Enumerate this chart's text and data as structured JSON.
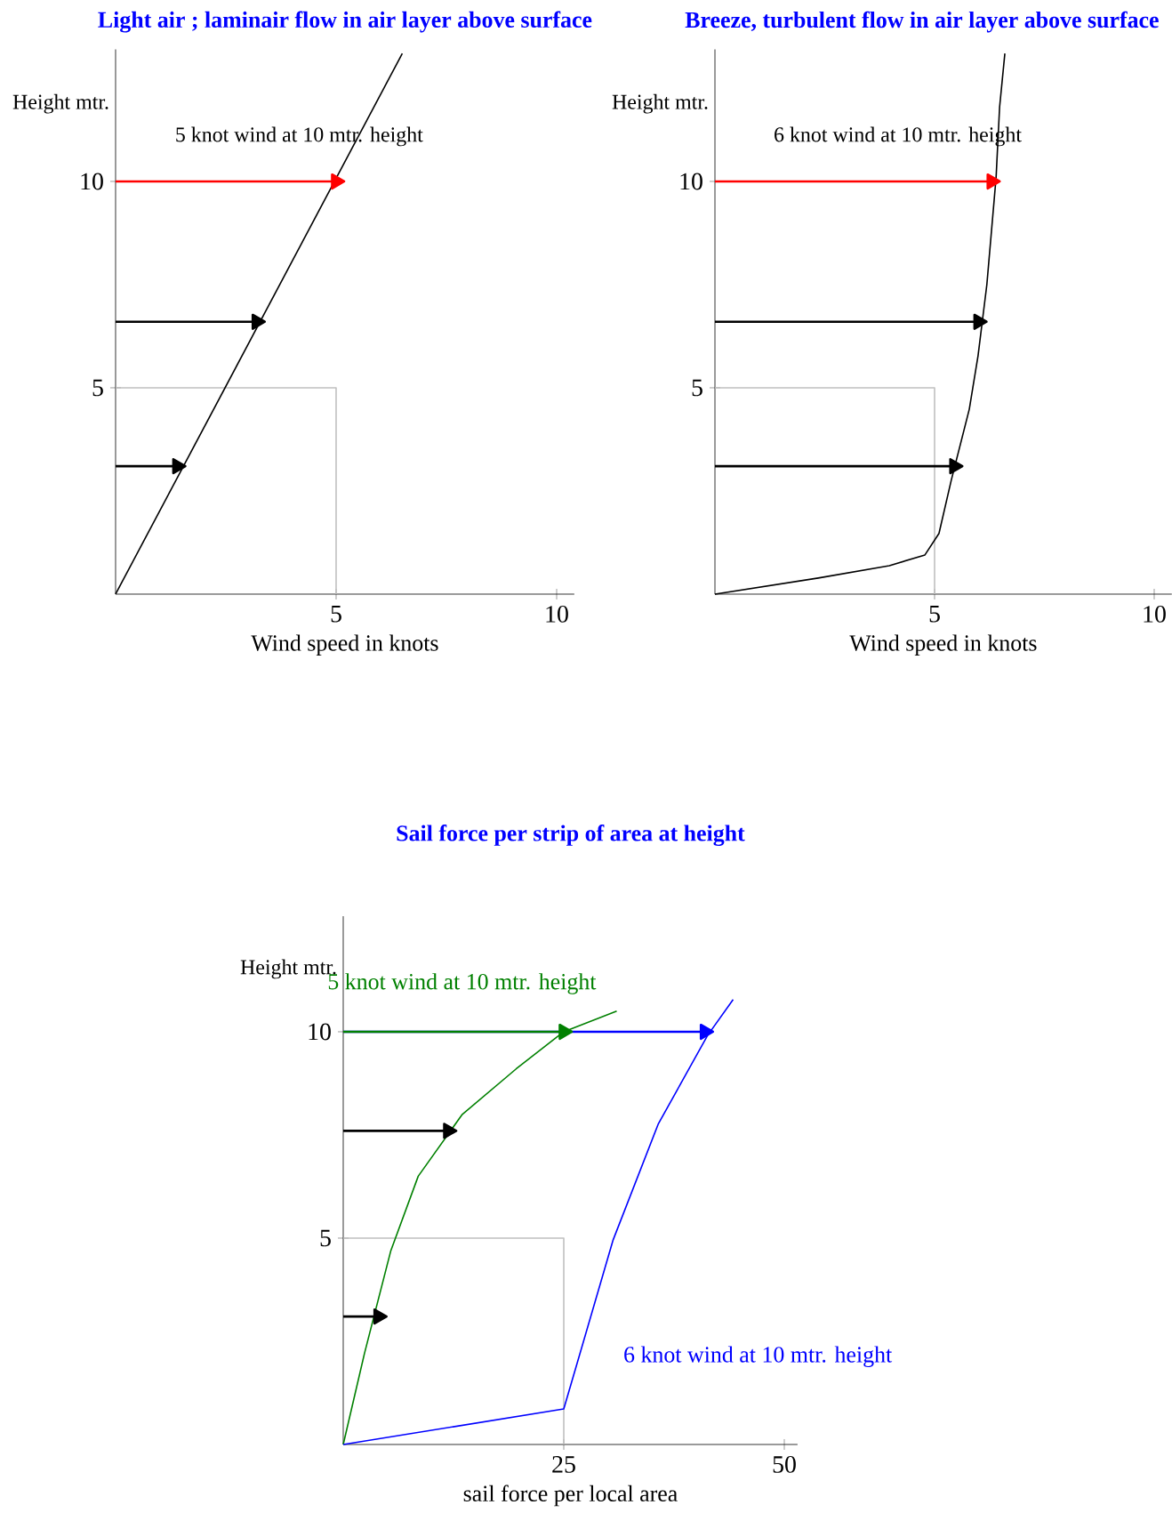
{
  "chart_data": [
    {
      "type": "line",
      "title": "Light air ; laminair flow in air layer above surface",
      "xlabel": "Wind speed in knots",
      "ylabel": "Height mtr.",
      "xlim": [
        0,
        10.4
      ],
      "ylim": [
        0,
        13.2
      ],
      "xticks": [
        5,
        10
      ],
      "yticks": [
        5,
        10
      ],
      "annotations": [
        "5 knot wind at 10 mtr. height"
      ],
      "series": [
        {
          "color": "#c0c0c0",
          "x": [
            0,
            5,
            5
          ],
          "values": [
            5,
            5,
            0
          ]
        },
        {
          "color": "#000000",
          "x": [
            0,
            6.5
          ],
          "values": [
            0,
            13.1
          ]
        },
        {
          "color": "#ff0000",
          "x": [
            0,
            5
          ],
          "values": [
            10,
            10
          ],
          "marker": "triangle"
        },
        {
          "color": "#000000",
          "x": [
            0,
            3.2
          ],
          "values": [
            6.6,
            6.6
          ],
          "marker": "triangle"
        },
        {
          "color": "#000000",
          "x": [
            0,
            1.4
          ],
          "values": [
            3.1,
            3.1
          ],
          "marker": "triangle"
        }
      ]
    },
    {
      "type": "line",
      "title": "Breeze, turbulent flow in air layer above surface",
      "xlabel": "Wind speed in knots",
      "ylabel": "Height mtr.",
      "xlim": [
        0,
        10.4
      ],
      "ylim": [
        0,
        13.2
      ],
      "xticks": [
        5,
        10
      ],
      "yticks": [
        5,
        10
      ],
      "annotations": [
        "6 knot wind at 10 mtr. height"
      ],
      "series": [
        {
          "color": "#c0c0c0",
          "x": [
            0,
            5,
            5
          ],
          "values": [
            5,
            5,
            0
          ]
        },
        {
          "color": "#000000",
          "x": [
            0,
            2.35,
            3.97,
            4.78,
            5.1,
            5.38,
            5.79,
            5.99,
            6.19,
            6.4,
            6.48,
            6.6
          ],
          "values": [
            0,
            0.39,
            0.69,
            0.95,
            1.47,
            2.76,
            4.48,
            5.78,
            7.5,
            10.09,
            11.8,
            13.1
          ]
        },
        {
          "color": "#ff0000",
          "x": [
            0,
            6.3
          ],
          "values": [
            10,
            10
          ],
          "marker": "triangle"
        },
        {
          "color": "#000000",
          "x": [
            0,
            6.0
          ],
          "values": [
            6.6,
            6.6
          ],
          "marker": "triangle"
        },
        {
          "color": "#000000",
          "x": [
            0,
            5.45
          ],
          "values": [
            3.1,
            3.1
          ],
          "marker": "triangle"
        }
      ]
    },
    {
      "type": "line",
      "title": "Sail force per strip of area at height",
      "xlabel": "sail force per local area",
      "ylabel": "Height mtr.",
      "xlim": [
        0,
        51.5
      ],
      "ylim": [
        0,
        12.8
      ],
      "xticks": [
        25,
        50
      ],
      "yticks": [
        5,
        10
      ],
      "series": [
        {
          "color": "#c0c0c0",
          "x": [
            0,
            25,
            25
          ],
          "values": [
            5,
            5,
            0
          ]
        },
        {
          "color": "#0000ff",
          "x": [
            0,
            41
          ],
          "values": [
            10,
            10
          ],
          "marker": "triangle"
        },
        {
          "color": "#008000",
          "x": [
            0,
            25
          ],
          "values": [
            10,
            10
          ],
          "marker": "triangle"
        },
        {
          "name": "5 knot wind at 10 mtr. height",
          "color": "#008000",
          "x": [
            0,
            2.4,
            5.4,
            8.5,
            13.5,
            19.6,
            25,
            31
          ],
          "values": [
            0,
            2.2,
            4.7,
            6.5,
            8,
            9.1,
            10,
            10.5
          ]
        },
        {
          "name": "6 knot wind at 10 mtr. height",
          "color": "#0000ff",
          "x": [
            0,
            25,
            30.6,
            35.7,
            41.3,
            44.2
          ],
          "values": [
            0,
            0.86,
            4.96,
            7.76,
            9.91,
            10.78
          ]
        },
        {
          "color": "#000000",
          "x": [
            0,
            11.9
          ],
          "values": [
            7.6,
            7.6
          ],
          "marker": "triangle"
        },
        {
          "color": "#000000",
          "x": [
            0,
            4
          ],
          "values": [
            3.1,
            3.1
          ],
          "marker": "triangle"
        }
      ]
    }
  ]
}
